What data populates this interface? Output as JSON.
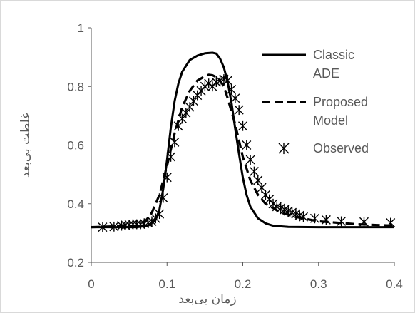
{
  "chart_data": {
    "type": "line",
    "title": "",
    "xlabel": "زمان بی‌بعد",
    "ylabel": "غلظت بی‌بعد",
    "xlim": [
      0,
      0.4
    ],
    "ylim": [
      0.2,
      1
    ],
    "xticks": [
      "0",
      "0.1",
      "0.2",
      "0.3",
      "0.4"
    ],
    "yticks": [
      "0.2",
      "0.4",
      "0.6",
      "0.8",
      "1"
    ],
    "grid": false,
    "legend_position": "top-right",
    "series": [
      {
        "name": "Classic ADE",
        "style": "solid",
        "color": "#000000",
        "x": [
          0,
          0.06,
          0.075,
          0.085,
          0.09,
          0.095,
          0.1,
          0.105,
          0.11,
          0.115,
          0.12,
          0.13,
          0.14,
          0.15,
          0.16,
          0.165,
          0.17,
          0.175,
          0.18,
          0.185,
          0.19,
          0.195,
          0.2,
          0.205,
          0.21,
          0.22,
          0.23,
          0.24,
          0.26,
          0.3,
          0.4
        ],
        "y": [
          0.32,
          0.32,
          0.325,
          0.345,
          0.38,
          0.45,
          0.55,
          0.66,
          0.75,
          0.81,
          0.85,
          0.89,
          0.905,
          0.913,
          0.915,
          0.912,
          0.895,
          0.865,
          0.815,
          0.745,
          0.655,
          0.57,
          0.49,
          0.43,
          0.39,
          0.35,
          0.333,
          0.325,
          0.321,
          0.32,
          0.32
        ]
      },
      {
        "name": "Proposed Model",
        "style": "dashed",
        "color": "#000000",
        "x": [
          0,
          0.06,
          0.07,
          0.08,
          0.09,
          0.1,
          0.11,
          0.12,
          0.13,
          0.14,
          0.15,
          0.155,
          0.16,
          0.165,
          0.17,
          0.175,
          0.18,
          0.19,
          0.2,
          0.21,
          0.22,
          0.23,
          0.25,
          0.27,
          0.3,
          0.35,
          0.4
        ],
        "y": [
          0.32,
          0.325,
          0.335,
          0.37,
          0.43,
          0.53,
          0.64,
          0.73,
          0.785,
          0.82,
          0.835,
          0.84,
          0.838,
          0.832,
          0.82,
          0.8,
          0.76,
          0.67,
          0.56,
          0.48,
          0.43,
          0.4,
          0.37,
          0.355,
          0.34,
          0.33,
          0.325
        ]
      },
      {
        "name": "Observed",
        "style": "markers",
        "color": "#000000",
        "x": [
          0.015,
          0.03,
          0.04,
          0.045,
          0.05,
          0.055,
          0.06,
          0.065,
          0.07,
          0.075,
          0.08,
          0.085,
          0.09,
          0.095,
          0.1,
          0.105,
          0.11,
          0.115,
          0.12,
          0.125,
          0.13,
          0.135,
          0.14,
          0.145,
          0.15,
          0.155,
          0.16,
          0.165,
          0.17,
          0.175,
          0.18,
          0.185,
          0.19,
          0.195,
          0.2,
          0.205,
          0.21,
          0.215,
          0.22,
          0.225,
          0.23,
          0.235,
          0.24,
          0.245,
          0.25,
          0.255,
          0.26,
          0.265,
          0.27,
          0.275,
          0.28,
          0.295,
          0.31,
          0.33,
          0.36,
          0.395
        ],
        "y": [
          0.32,
          0.322,
          0.325,
          0.327,
          0.328,
          0.33,
          0.33,
          0.33,
          0.332,
          0.335,
          0.34,
          0.35,
          0.365,
          0.42,
          0.49,
          0.56,
          0.61,
          0.665,
          0.69,
          0.71,
          0.73,
          0.75,
          0.77,
          0.785,
          0.8,
          0.81,
          0.8,
          0.815,
          0.82,
          0.825,
          0.82,
          0.79,
          0.76,
          0.72,
          0.665,
          0.6,
          0.55,
          0.51,
          0.48,
          0.455,
          0.43,
          0.415,
          0.4,
          0.39,
          0.385,
          0.38,
          0.375,
          0.37,
          0.365,
          0.36,
          0.355,
          0.35,
          0.345,
          0.34,
          0.338,
          0.335
        ]
      }
    ]
  },
  "legend": {
    "items": [
      {
        "label_line1": "Classic",
        "label_line2": "ADE"
      },
      {
        "label_line1": "Proposed",
        "label_line2": "Model"
      },
      {
        "label_line1": "Observed",
        "label_line2": ""
      }
    ]
  }
}
